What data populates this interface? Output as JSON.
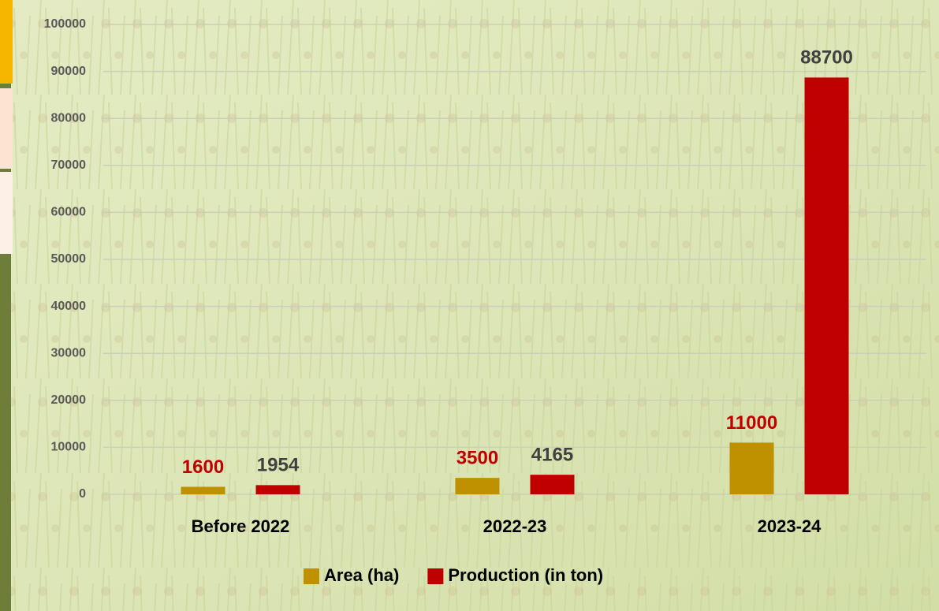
{
  "chart_data": {
    "type": "bar",
    "categories": [
      "Before 2022",
      "2022-23",
      "2023-24"
    ],
    "series": [
      {
        "name": "Area (ha)",
        "color": "#bf9000",
        "values": [
          1600,
          3500,
          11000
        ]
      },
      {
        "name": "Production (in ton)",
        "color": "#c00000",
        "values": [
          1954,
          4165,
          88700
        ]
      }
    ],
    "ylim": [
      0,
      100000
    ],
    "yticks": [
      0,
      10000,
      20000,
      30000,
      40000,
      50000,
      60000,
      70000,
      80000,
      90000,
      100000
    ],
    "grid": true,
    "legend": "bottom"
  }
}
